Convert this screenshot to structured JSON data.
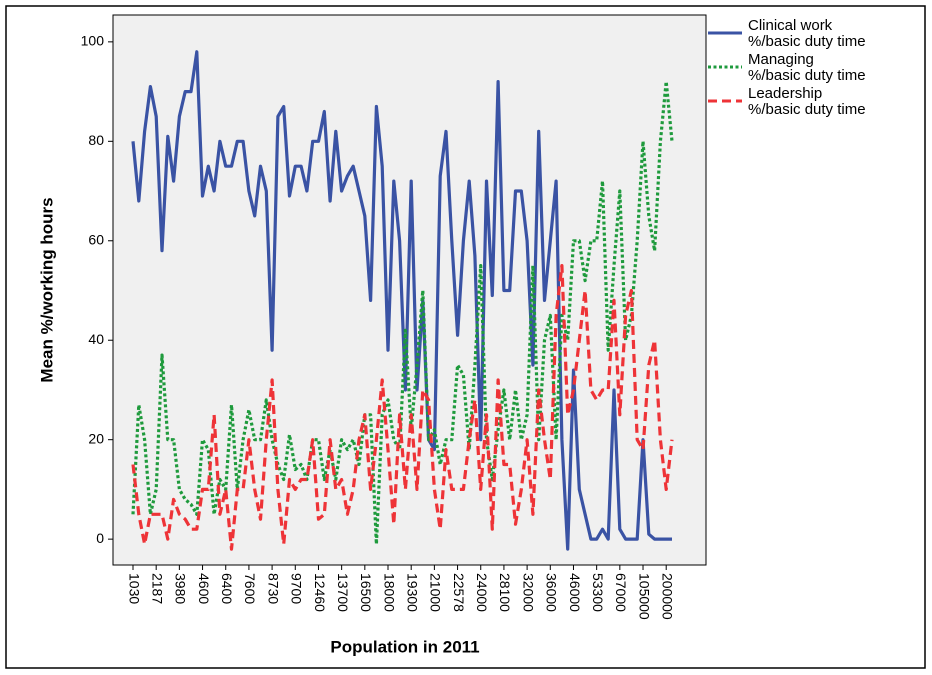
{
  "chart_data": {
    "type": "line",
    "y_label": "Mean %/working hours",
    "x_label": "Population in 2011",
    "categories": [
      "1030",
      null,
      null,
      null,
      "2187",
      null,
      null,
      null,
      "3980",
      null,
      null,
      null,
      "4600",
      null,
      null,
      null,
      "6400",
      null,
      null,
      null,
      "7600",
      null,
      null,
      null,
      "8730",
      null,
      null,
      null,
      "9700",
      null,
      null,
      null,
      "12460",
      null,
      null,
      null,
      "13700",
      null,
      null,
      null,
      "16500",
      null,
      null,
      null,
      "18000",
      null,
      null,
      null,
      "19300",
      null,
      null,
      null,
      "21000",
      null,
      null,
      null,
      "22578",
      null,
      null,
      null,
      "24000",
      null,
      null,
      null,
      "28100",
      null,
      null,
      null,
      "32000",
      null,
      null,
      null,
      "36000",
      null,
      null,
      null,
      "46000",
      null,
      null,
      null,
      "53300",
      null,
      null,
      null,
      "67000",
      null,
      null,
      null,
      "105000",
      null,
      null,
      null,
      "200000",
      null
    ],
    "series": [
      {
        "name": "Clinical work\n%/basic duty time",
        "color": "#3a53a4",
        "style": "solid",
        "values": [
          80,
          68,
          82,
          91,
          85,
          58,
          81,
          72,
          85,
          90,
          90,
          98,
          69,
          75,
          70,
          80,
          75,
          75,
          80,
          80,
          70,
          65,
          75,
          70,
          38,
          85,
          87,
          69,
          75,
          75,
          70,
          80,
          80,
          86,
          68,
          82,
          70,
          73,
          75,
          70,
          65,
          48,
          87,
          75,
          38,
          72,
          60,
          30,
          72,
          30,
          48,
          20,
          18,
          73,
          82,
          60,
          41,
          60,
          72,
          57,
          20,
          72,
          49,
          92,
          50,
          50,
          70,
          70,
          60,
          35,
          82,
          48,
          60,
          72,
          20,
          -2,
          34,
          10,
          5,
          0,
          0,
          2,
          0,
          30,
          2,
          0,
          0,
          0,
          20,
          1,
          0,
          0,
          0,
          0
        ]
      },
      {
        "name": "Managing\n%/basic duty time",
        "color": "#1e9a3c",
        "style": "dotted",
        "values": [
          5,
          27,
          20,
          5,
          10,
          37,
          20,
          20,
          10,
          8,
          7,
          5,
          20,
          18,
          5,
          12,
          10,
          27,
          10,
          20,
          26,
          20,
          20,
          28,
          20,
          15,
          12,
          21,
          14,
          15,
          12,
          20,
          20,
          12,
          18,
          12,
          20,
          18,
          20,
          15,
          25,
          25,
          -1,
          25,
          28,
          20,
          18,
          42,
          22,
          35,
          50,
          20,
          22,
          15,
          20,
          20,
          35,
          33,
          18,
          35,
          55,
          20,
          12,
          22,
          30,
          20,
          30,
          20,
          25,
          55,
          20,
          40,
          45,
          20,
          45,
          40,
          60,
          60,
          52,
          60,
          60,
          72,
          38,
          55,
          70,
          40,
          45,
          60,
          80,
          65,
          58,
          80,
          92,
          80
        ]
      },
      {
        "name": "Leadership\n%/basic duty time",
        "color": "#ee3337",
        "style": "dashed",
        "values": [
          15,
          5,
          -1,
          5,
          5,
          5,
          0,
          8,
          5,
          4,
          2,
          2,
          10,
          10,
          25,
          5,
          10,
          -2,
          10,
          10,
          20,
          10,
          4,
          20,
          32,
          10,
          -1,
          12,
          10,
          12,
          12,
          20,
          4,
          5,
          20,
          10,
          12,
          5,
          10,
          20,
          25,
          10,
          20,
          32,
          18,
          3,
          25,
          10,
          25,
          10,
          30,
          28,
          10,
          2,
          18,
          10,
          10,
          10,
          20,
          28,
          10,
          25,
          2,
          32,
          15,
          15,
          3,
          10,
          20,
          5,
          30,
          20,
          12,
          45,
          55,
          25,
          30,
          40,
          50,
          30,
          28,
          30,
          30,
          48,
          25,
          45,
          50,
          20,
          18,
          35,
          40,
          20,
          10,
          20
        ]
      }
    ],
    "ylim": [
      -5.2,
      105.4
    ],
    "yticks": [
      0,
      20,
      40,
      60,
      80,
      100
    ],
    "grid": false,
    "legend": "right"
  }
}
